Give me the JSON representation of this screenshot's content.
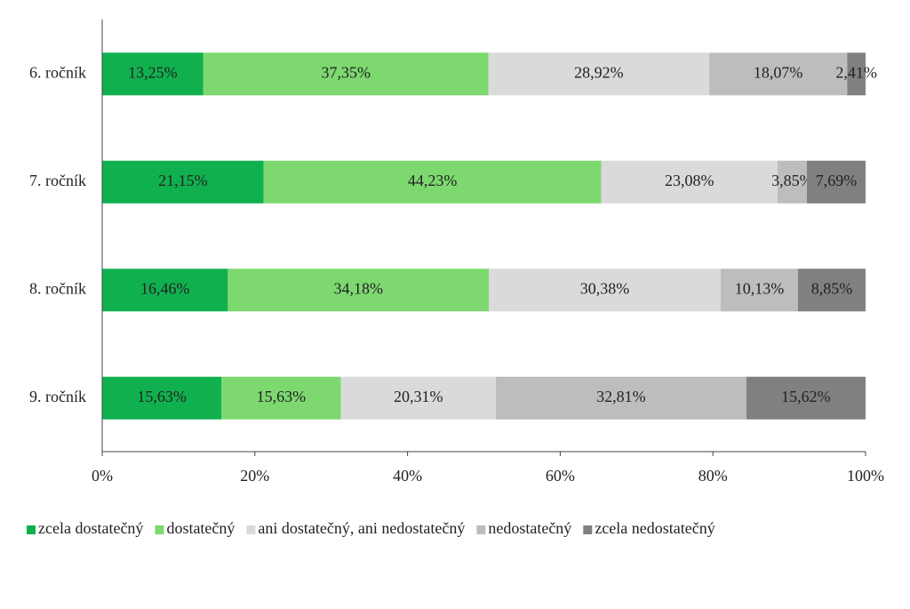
{
  "chart_data": {
    "type": "bar",
    "orientation": "horizontal",
    "stacked": true,
    "categories": [
      "6. ročník",
      "7. ročník",
      "8. ročník",
      "9. ročník"
    ],
    "series": [
      {
        "name": "zcela dostatečný",
        "color": "#11b04f",
        "values": [
          13.25,
          21.15,
          16.46,
          15.63
        ],
        "value_labels": [
          "13,25%",
          "21,15%",
          "16,46%",
          "15,63%"
        ]
      },
      {
        "name": "dostatečný",
        "color": "#7dd870",
        "values": [
          37.35,
          44.23,
          34.18,
          15.63
        ],
        "value_labels": [
          "37,35%",
          "44,23%",
          "34,18%",
          "15,63%"
        ]
      },
      {
        "name": "ani dostatečný, ani nedostatečný",
        "color": "#dadada",
        "values": [
          28.92,
          23.08,
          30.38,
          20.31
        ],
        "value_labels": [
          "28,92%",
          "23,08%",
          "30,38%",
          "20,31%"
        ]
      },
      {
        "name": "nedostatečný",
        "color": "#bdbdbd",
        "values": [
          18.07,
          3.85,
          10.13,
          32.81
        ],
        "value_labels": [
          "18,07%",
          "3,85%",
          "10,13%",
          "32,81%"
        ]
      },
      {
        "name": "zcela nedostatečný",
        "color": "#808080",
        "values": [
          2.41,
          7.69,
          8.85,
          15.62
        ],
        "value_labels": [
          "2,41%",
          "7,69%",
          "8,85%",
          "15,62%"
        ]
      }
    ],
    "xlim": [
      0,
      100
    ],
    "xticks": [
      {
        "value": 0,
        "label": "0%"
      },
      {
        "value": 20,
        "label": "20%"
      },
      {
        "value": 40,
        "label": "40%"
      },
      {
        "value": 60,
        "label": "60%"
      },
      {
        "value": 80,
        "label": "80%"
      },
      {
        "value": 100,
        "label": "100%"
      }
    ],
    "legend": "bottom"
  }
}
